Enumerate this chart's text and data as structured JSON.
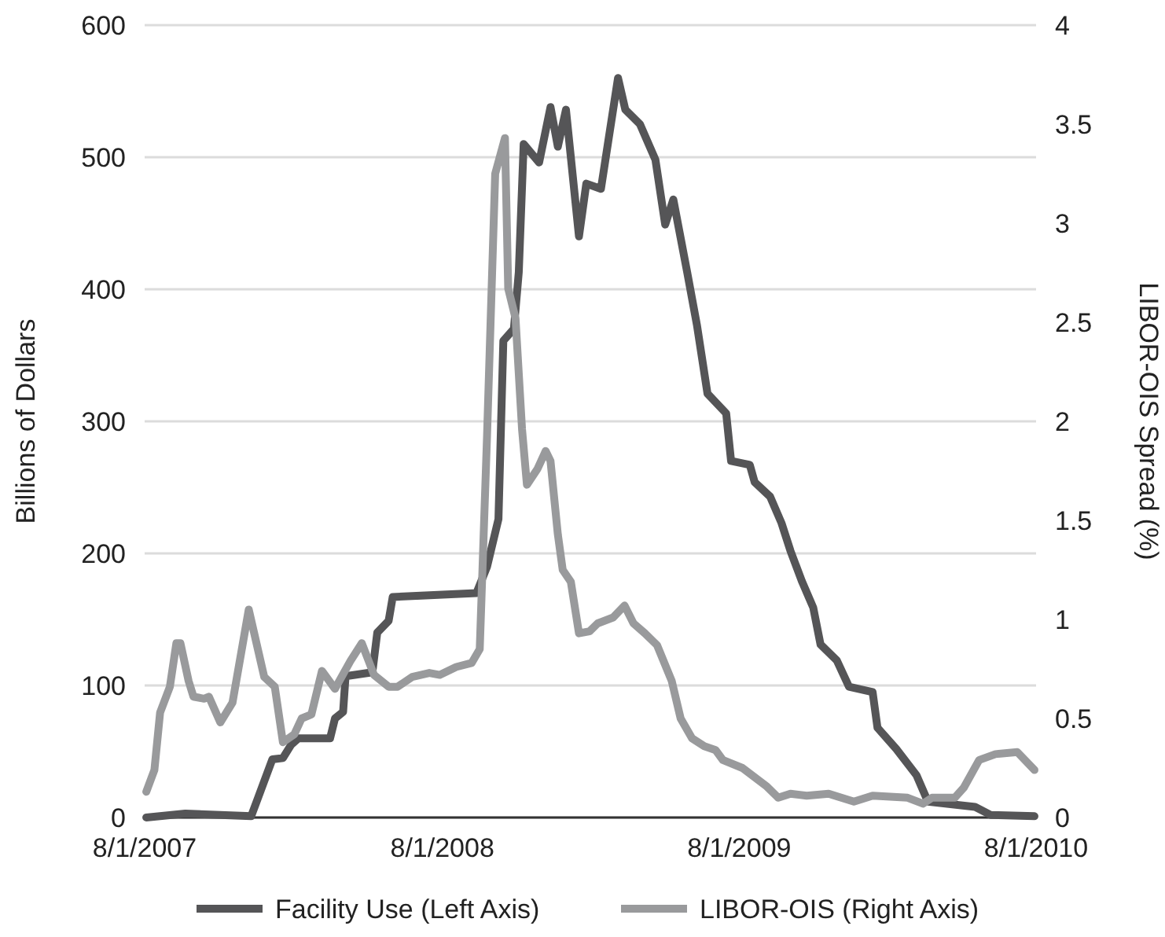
{
  "chart_data": {
    "type": "line",
    "ylabel": "Billions of Dollars",
    "y2label": "LIBOR-OIS Spread (%)",
    "xlim": [
      "2007-08-01",
      "2010-08-01"
    ],
    "xticks": [
      {
        "value": "2007-08-01",
        "label": "8/1/2007"
      },
      {
        "value": "2008-08-01",
        "label": "8/1/2008"
      },
      {
        "value": "2009-08-01",
        "label": "8/1/2009"
      },
      {
        "value": "2010-08-01",
        "label": "8/1/2010"
      }
    ],
    "ylim": [
      0,
      600
    ],
    "yticks": [
      0,
      100,
      200,
      300,
      400,
      500,
      600
    ],
    "y2lim": [
      0,
      4
    ],
    "y2ticks": [
      0,
      0.5,
      1,
      1.5,
      2,
      2.5,
      3,
      3.5,
      4
    ],
    "grid": "y",
    "legend": "bottom",
    "marker": "none",
    "line_style": "solid",
    "series": [
      {
        "name": "Facility Use (Left Axis)",
        "color": "#555557",
        "x": [
          "2007-08-03",
          "2007-09-20",
          "2007-12-10",
          "2008-01-05",
          "2008-01-18",
          "2008-01-28",
          "2008-02-06",
          "2008-03-16",
          "2008-03-22",
          "2008-04-01",
          "2008-04-04",
          "2008-05-07",
          "2008-05-13",
          "2008-05-27",
          "2008-06-01",
          "2008-09-12",
          "2008-09-25",
          "2008-10-09",
          "2008-10-15",
          "2008-10-28",
          "2008-11-03",
          "2008-11-09",
          "2008-11-28",
          "2008-12-12",
          "2008-12-21",
          "2008-12-31",
          "2009-01-16",
          "2009-01-25",
          "2009-02-12",
          "2009-02-21",
          "2009-03-05",
          "2009-03-14",
          "2009-04-01",
          "2009-04-20",
          "2009-05-02",
          "2009-05-12",
          "2009-05-29",
          "2009-06-10",
          "2009-06-23",
          "2009-07-16",
          "2009-07-22",
          "2009-08-14",
          "2009-08-20",
          "2009-09-08",
          "2009-09-22",
          "2009-10-03",
          "2009-10-17",
          "2009-10-31",
          "2009-11-09",
          "2009-11-29",
          "2009-12-14",
          "2010-01-12",
          "2010-01-18",
          "2010-02-10",
          "2010-03-07",
          "2010-03-21",
          "2010-05-18",
          "2010-06-06",
          "2010-07-30"
        ],
        "values": [
          0,
          3,
          1,
          44,
          45,
          55,
          60,
          60,
          75,
          80,
          107,
          110,
          140,
          149,
          167,
          170,
          190,
          226,
          361,
          370,
          413,
          510,
          496,
          538,
          508,
          536,
          440,
          480,
          476,
          512,
          560,
          536,
          525,
          498,
          449,
          468,
          413,
          373,
          321,
          306,
          270,
          267,
          254,
          243,
          223,
          202,
          179,
          159,
          131,
          119,
          99,
          95,
          68,
          52,
          32,
          12,
          8,
          2,
          1
        ]
      },
      {
        "name": "LIBOR-OIS (Right Axis)",
        "color": "#999a9c",
        "axis": "y2",
        "x": [
          "2007-08-03",
          "2007-08-13",
          "2007-08-20",
          "2007-09-01",
          "2007-09-09",
          "2007-09-14",
          "2007-09-24",
          "2007-09-30",
          "2007-10-13",
          "2007-10-19",
          "2007-11-02",
          "2007-11-17",
          "2007-12-07",
          "2007-12-26",
          "2008-01-08",
          "2008-01-18",
          "2008-02-01",
          "2008-02-10",
          "2008-02-22",
          "2008-03-06",
          "2008-03-22",
          "2008-04-10",
          "2008-04-24",
          "2008-05-09",
          "2008-05-27",
          "2008-06-07",
          "2008-06-25",
          "2008-07-16",
          "2008-07-29",
          "2008-08-18",
          "2008-09-06",
          "2008-09-16",
          "2008-09-25",
          "2008-10-05",
          "2008-10-17",
          "2008-10-21",
          "2008-10-30",
          "2008-11-07",
          "2008-11-13",
          "2008-11-26",
          "2008-12-06",
          "2008-12-12",
          "2008-12-21",
          "2008-12-27",
          "2009-01-06",
          "2009-01-16",
          "2009-01-29",
          "2009-02-08",
          "2009-02-27",
          "2009-03-13",
          "2009-03-24",
          "2009-04-07",
          "2009-04-22",
          "2009-05-10",
          "2009-05-21",
          "2009-06-04",
          "2009-06-19",
          "2009-07-03",
          "2009-07-12",
          "2009-08-05",
          "2009-09-03",
          "2009-09-18",
          "2009-10-03",
          "2009-10-23",
          "2009-11-19",
          "2009-12-20",
          "2010-01-12",
          "2010-02-24",
          "2010-03-15",
          "2010-03-26",
          "2010-04-23",
          "2010-05-04",
          "2010-05-23",
          "2010-06-12",
          "2010-07-09",
          "2010-07-30"
        ],
        "values": [
          0.13,
          0.24,
          0.53,
          0.66,
          0.88,
          0.88,
          0.69,
          0.61,
          0.6,
          0.61,
          0.48,
          0.58,
          1.05,
          0.71,
          0.66,
          0.38,
          0.42,
          0.5,
          0.52,
          0.74,
          0.65,
          0.79,
          0.88,
          0.72,
          0.66,
          0.66,
          0.71,
          0.73,
          0.72,
          0.76,
          0.78,
          0.85,
          1.93,
          3.25,
          3.43,
          2.67,
          2.52,
          1.96,
          1.68,
          1.76,
          1.85,
          1.8,
          1.43,
          1.25,
          1.19,
          0.93,
          0.94,
          0.98,
          1.01,
          1.07,
          0.98,
          0.93,
          0.87,
          0.69,
          0.5,
          0.4,
          0.36,
          0.34,
          0.29,
          0.25,
          0.16,
          0.1,
          0.12,
          0.11,
          0.12,
          0.08,
          0.11,
          0.1,
          0.07,
          0.1,
          0.1,
          0.15,
          0.29,
          0.32,
          0.33,
          0.24
        ]
      }
    ]
  }
}
